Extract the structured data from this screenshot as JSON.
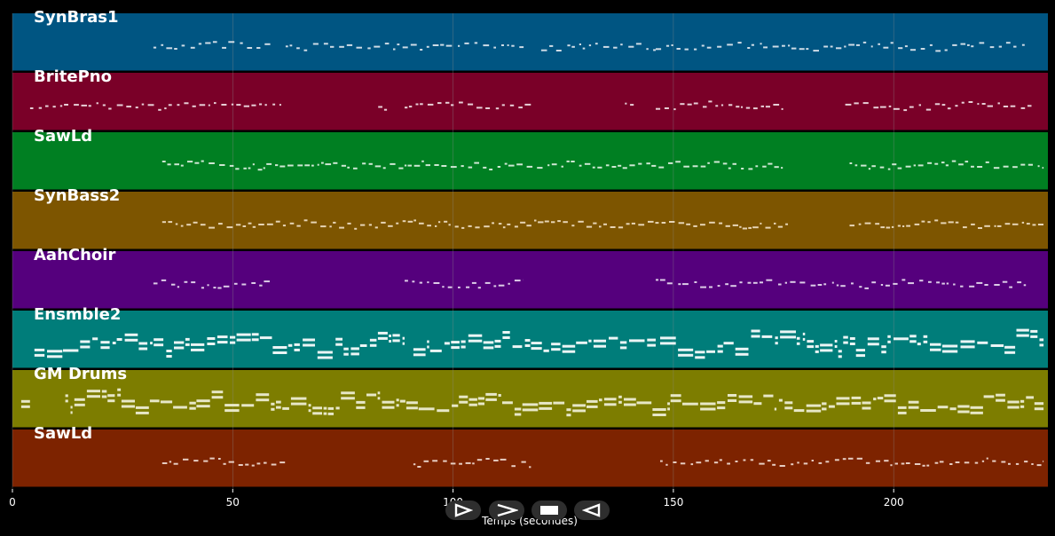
{
  "chart_data": {
    "type": "piano-roll",
    "xlabel": "Temps (secondes)",
    "xlim": [
      0,
      235
    ],
    "x_ticks": [
      0,
      50,
      100,
      150,
      200
    ],
    "tracks": [
      {
        "name": "SynBras1",
        "color": "#005582",
        "note_color": "#dfe7ee",
        "density": 5,
        "segments": [
          [
            32,
            59
          ],
          [
            62,
            116
          ],
          [
            120,
            146
          ],
          [
            146,
            230
          ]
        ]
      },
      {
        "name": "BritePno",
        "color": "#7a0028",
        "note_color": "#f0dfe5",
        "density": 5,
        "segments": [
          [
            4,
            61
          ],
          [
            83,
            85
          ],
          [
            89,
            118
          ],
          [
            139,
            141
          ],
          [
            146,
            175
          ],
          [
            189,
            232
          ]
        ]
      },
      {
        "name": "SawLd",
        "color": "#007f22",
        "note_color": "#dff0e3",
        "density": 6,
        "segments": [
          [
            34,
            175
          ],
          [
            190,
            234
          ]
        ]
      },
      {
        "name": "SynBass2",
        "color": "#7d5500",
        "note_color": "#efe0c4",
        "density": 7,
        "segments": [
          [
            34,
            176
          ],
          [
            190,
            234
          ]
        ]
      },
      {
        "name": "AahChoir",
        "color": "#55007d",
        "note_color": "#e8ddf0",
        "density": 5,
        "segments": [
          [
            32,
            59
          ],
          [
            89,
            116
          ],
          [
            146,
            230
          ]
        ]
      },
      {
        "name": "Ensmble2",
        "color": "#007d7a",
        "note_color": "#ffffff",
        "density": 10,
        "segments": [
          [
            5,
            89
          ],
          [
            91,
            146
          ],
          [
            147,
            234
          ]
        ]
      },
      {
        "name": "GM Drums",
        "color": "#7d7d00",
        "note_color": "#f0f0d8",
        "density": 12,
        "segments": [
          [
            2,
            4
          ],
          [
            12,
            234
          ]
        ]
      },
      {
        "name": "SawLd",
        "color": "#7d2300",
        "note_color": "#f0dcd2",
        "density": 5,
        "segments": [
          [
            34,
            62
          ],
          [
            91,
            118
          ],
          [
            147,
            234
          ]
        ]
      }
    ]
  },
  "controls": {
    "play_icon": "play-triangle-icon",
    "forward_icon": "chevron-right-icon",
    "stop_icon": "stop-square-icon",
    "back_icon": "rewind-triangle-icon"
  },
  "colors": {
    "background": "#000000",
    "grid": "#8a8a8a",
    "control_bg": "#2e2e2e"
  }
}
